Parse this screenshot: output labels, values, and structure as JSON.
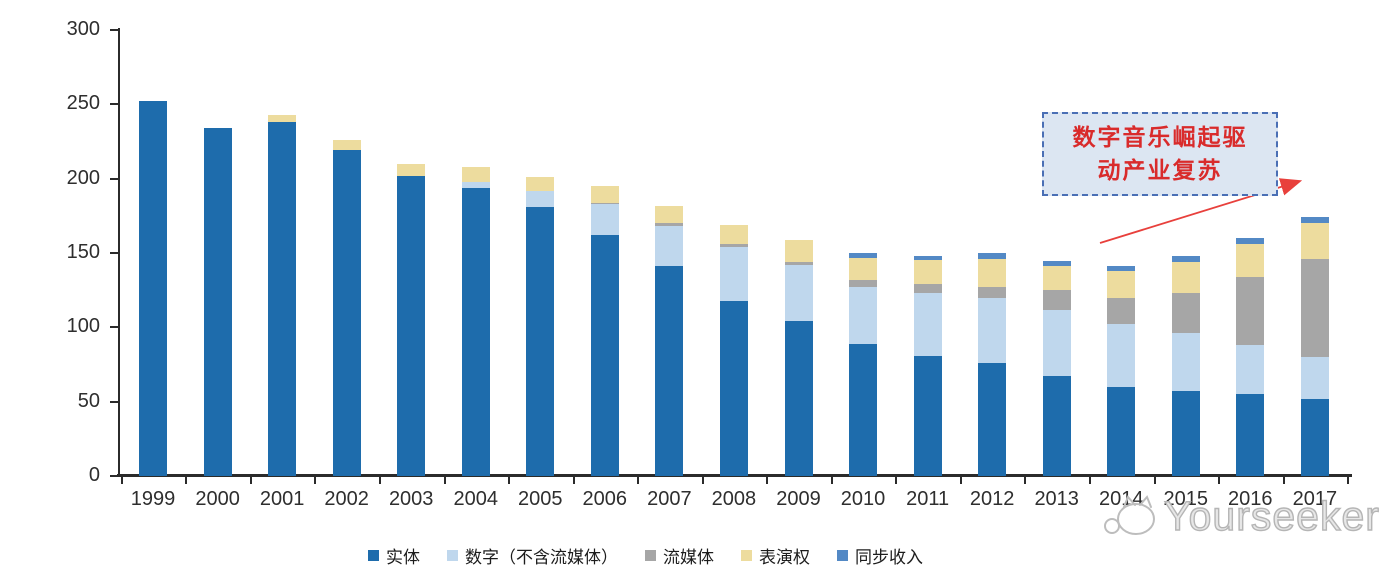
{
  "chart_data": {
    "type": "bar",
    "stacked": true,
    "title": "",
    "xlabel": "",
    "ylabel": "",
    "ylim": [
      0,
      300
    ],
    "yticks": [
      0,
      50,
      100,
      150,
      200,
      250,
      300
    ],
    "grid": false,
    "legend_position": "bottom",
    "categories": [
      "1999",
      "2000",
      "2001",
      "2002",
      "2003",
      "2004",
      "2005",
      "2006",
      "2007",
      "2008",
      "2009",
      "2010",
      "2011",
      "2012",
      "2013",
      "2014",
      "2015",
      "2016",
      "2017"
    ],
    "series": [
      {
        "key": "physical",
        "name": "实体",
        "color": "#1e6cac",
        "values": [
          252,
          234,
          238,
          219,
          202,
          194,
          181,
          162,
          141,
          118,
          104,
          89,
          81,
          76,
          67,
          60,
          57,
          55,
          52
        ]
      },
      {
        "key": "digital-excl-streaming",
        "name": "数字（不含流媒体）",
        "color": "#bfd7ed",
        "values": [
          0,
          0,
          0,
          0,
          0,
          4,
          11,
          21,
          27,
          36,
          38,
          38,
          42,
          44,
          45,
          42,
          39,
          33,
          28
        ]
      },
      {
        "key": "streaming",
        "name": "流媒体",
        "color": "#a6a6a6",
        "values": [
          0,
          0,
          0,
          0,
          0,
          0,
          0,
          1,
          2,
          2,
          2,
          5,
          6,
          7,
          13,
          18,
          27,
          46,
          66
        ]
      },
      {
        "key": "performance-rights",
        "name": "表演权",
        "color": "#eddc9e",
        "values": [
          0,
          0,
          5,
          7,
          8,
          10,
          9,
          11,
          12,
          13,
          15,
          15,
          16,
          19,
          16,
          18,
          21,
          22,
          24
        ]
      },
      {
        "key": "sync",
        "name": "同步收入",
        "color": "#5389c5",
        "values": [
          0,
          0,
          0,
          0,
          0,
          0,
          0,
          0,
          0,
          0,
          0,
          3,
          3,
          4,
          4,
          3,
          4,
          4,
          4
        ]
      }
    ]
  },
  "annotation": {
    "line1": "数字音乐崛起驱",
    "line2": "动产业复苏",
    "text_color": "#d92b2b",
    "box_fill": "#dce6f2",
    "box_border": "#4a6fb5",
    "arrow_color": "#e8403c"
  },
  "watermark": {
    "text": "Yourseeker",
    "color": "#c5c5c5"
  }
}
